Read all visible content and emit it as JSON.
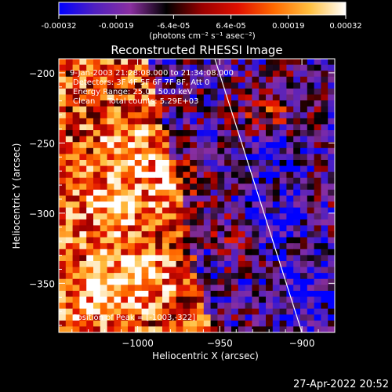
{
  "chart_data": {
    "type": "heatmap",
    "title": "Reconstructed RHESSI Image",
    "xlabel": "Heliocentric X (arcsec)",
    "ylabel": "Heliocentric Y (arcsec)",
    "x_ticks": [
      -1000,
      -950,
      -900
    ],
    "x_tick_labels": [
      "−1000",
      "−950",
      "−900"
    ],
    "y_ticks": [
      -200,
      -250,
      -300,
      -350
    ],
    "y_tick_labels": [
      "−200",
      "−250",
      "−300",
      "−350"
    ],
    "xlim": [
      -1048,
      -880
    ],
    "ylim": [
      -385,
      -190
    ],
    "colorbar": {
      "range": [
        -0.00032,
        0.00032
      ],
      "tick_labels": [
        "-0.00032",
        "-0.00019",
        "-6.4e-05",
        "6.4e-05",
        "0.00019",
        "0.00032"
      ],
      "unit_label": "(photons cm⁻² s⁻¹ asec⁻²)",
      "colors": [
        "#0000ff",
        "#5020c0",
        "#8a2fa0",
        "#000000",
        "#9a0000",
        "#e01000",
        "#ff6a00",
        "#ffc040",
        "#ffffff"
      ]
    },
    "annotations": {
      "time_range": "9-Jan-2003 21:28:08.000 to 21:34:08.000",
      "detectors": "Detectors: 3F 4F 5F 6F 7F 8F, Att 0",
      "energy": "Energy Range: 25.0 - 50.0 keV",
      "clean": "Clean     Total counts: 5.29E+03",
      "peak": "Position of Peak = [-1003,-322]"
    },
    "limb_line": {
      "x": [
        -953,
        -900
      ],
      "y": [
        -190,
        -385
      ]
    },
    "image_grid": {
      "nx": 40,
      "ny": 46,
      "seed": 7
    }
  },
  "footer": {
    "timestamp": "27-Apr-2022 20:52"
  }
}
